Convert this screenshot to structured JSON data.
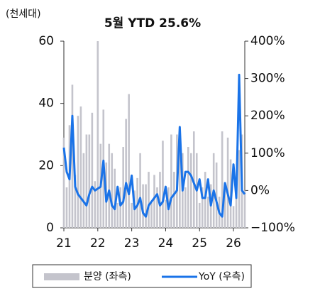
{
  "chart_data": {
    "type": "bar_line",
    "title": "5월 YTD 25.6%",
    "y_label": "(천세대)",
    "categories": [
      "21",
      null,
      null,
      null,
      null,
      null,
      null,
      null,
      null,
      null,
      null,
      null,
      "22",
      null,
      null,
      null,
      null,
      null,
      null,
      null,
      null,
      null,
      null,
      null,
      "23",
      null,
      null,
      null,
      null,
      null,
      null,
      null,
      null,
      null,
      null,
      null,
      "24",
      null,
      null,
      null,
      null,
      null,
      null,
      null,
      null,
      null,
      null,
      null,
      "25",
      null,
      null,
      null,
      null,
      null,
      null,
      null,
      null,
      null,
      null,
      null,
      "26",
      null,
      null,
      null,
      null
    ],
    "series": [
      {
        "name": "분양 (좌측)",
        "type": "bar",
        "color": "#c4c4cc",
        "values": [
          29,
          13,
          33,
          46,
          17,
          36,
          39,
          24,
          30,
          30,
          37,
          15,
          60,
          27,
          38,
          21,
          27,
          24,
          19,
          8,
          13,
          26,
          35,
          43,
          8,
          12,
          16,
          24,
          14,
          14,
          18,
          8,
          17,
          13,
          18,
          28,
          9,
          13,
          30,
          18,
          30,
          28,
          24,
          13,
          26,
          24,
          31,
          24,
          8,
          13,
          18,
          10,
          14,
          24,
          21,
          10,
          31,
          12,
          29,
          22,
          7,
          10,
          25,
          30,
          12
        ]
      },
      {
        "name": "YoY (우측)",
        "type": "line",
        "axis": "y2",
        "color": "#1a73e8",
        "values": [
          115,
          50,
          30,
          200,
          10,
          -10,
          -20,
          -30,
          -40,
          -10,
          10,
          0,
          5,
          10,
          80,
          -30,
          0,
          -40,
          -50,
          10,
          -40,
          -30,
          20,
          -10,
          40,
          -50,
          -40,
          -20,
          -60,
          -70,
          -40,
          -30,
          -20,
          -10,
          -40,
          -30,
          10,
          -50,
          -20,
          -10,
          0,
          170,
          0,
          50,
          50,
          40,
          20,
          0,
          30,
          -20,
          -20,
          30,
          -40,
          0,
          -30,
          -60,
          -70,
          20,
          -10,
          -40,
          70,
          -20,
          310,
          0,
          -10
        ]
      }
    ],
    "ylim": [
      0,
      60
    ],
    "yticks": [
      0,
      20,
      40,
      60
    ],
    "y2lim": [
      -100,
      400
    ],
    "y2ticks": [
      {
        "value": -100,
        "label": "−100%"
      },
      {
        "value": 0,
        "label": "0%"
      },
      {
        "value": 100,
        "label": "100%"
      },
      {
        "value": 200,
        "label": "200%"
      },
      {
        "value": 300,
        "label": "300%"
      },
      {
        "value": 400,
        "label": "400%"
      }
    ]
  }
}
